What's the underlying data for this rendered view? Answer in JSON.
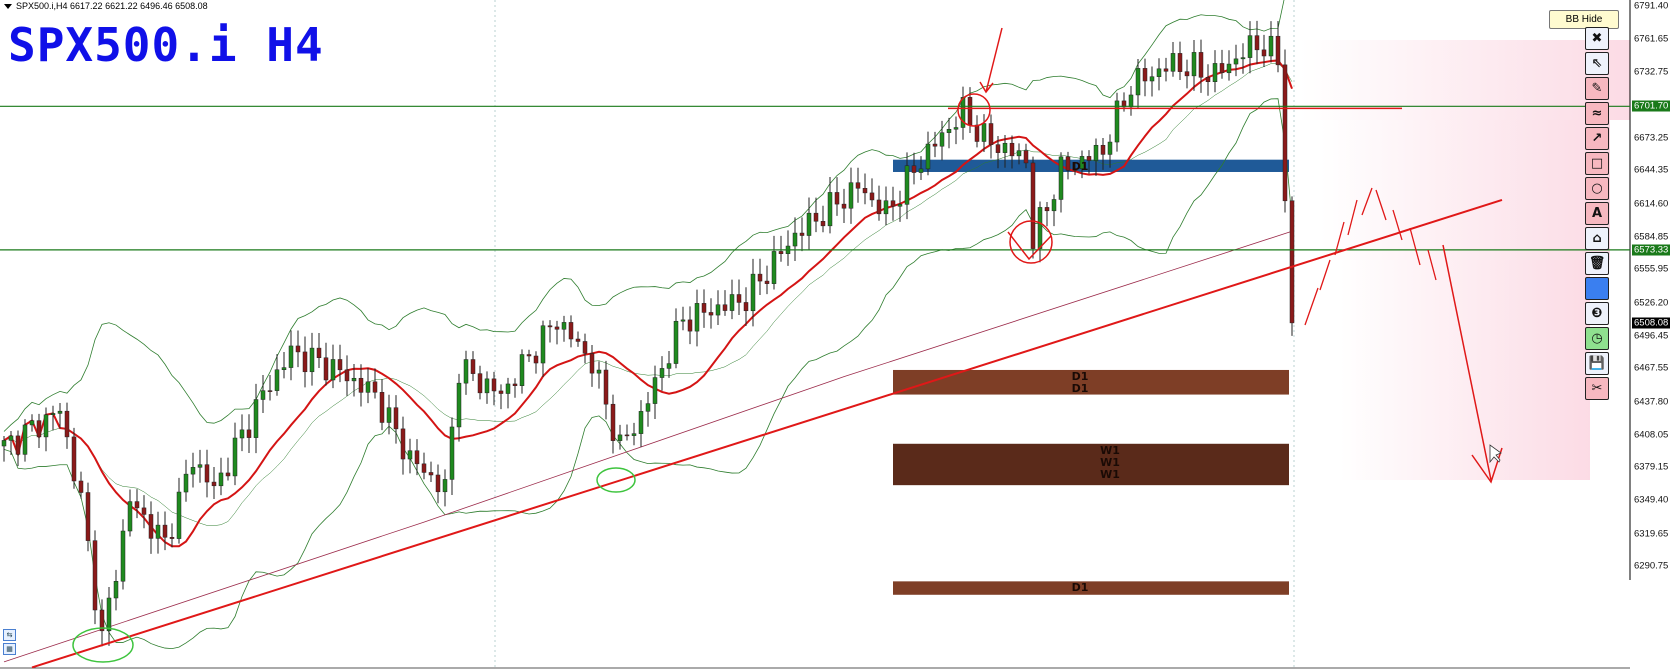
{
  "header": {
    "symbol_line": "SPX500.i,H4  6617.22 6621.22 6496.46 6508.08",
    "big_title": "SPX500.i H4"
  },
  "controls": {
    "bb_hide_label": "BB Hide"
  },
  "toolbar": {
    "items": [
      {
        "icon": "close-icon",
        "glyph": "✖",
        "style": "plain"
      },
      {
        "icon": "cursor-icon",
        "glyph": "⇖",
        "style": "plain"
      },
      {
        "icon": "pencil-icon",
        "glyph": "✎",
        "style": "pink"
      },
      {
        "icon": "wave-icon",
        "glyph": "≈",
        "style": "pink"
      },
      {
        "icon": "arrow-icon",
        "glyph": "↗",
        "style": "pink"
      },
      {
        "icon": "rectangle-icon",
        "glyph": "□",
        "style": "pink"
      },
      {
        "icon": "circle-icon",
        "glyph": "○",
        "style": "pink"
      },
      {
        "icon": "text-icon",
        "glyph": "A",
        "style": "pink"
      },
      {
        "icon": "label-icon",
        "glyph": "⌂",
        "style": "plain"
      },
      {
        "icon": "trash-icon",
        "glyph": "🗑",
        "style": "plain"
      },
      {
        "icon": "color-swatch-icon",
        "glyph": "",
        "style": "blue"
      },
      {
        "icon": "number-three-icon",
        "glyph": "❸",
        "style": "plain"
      },
      {
        "icon": "clock-icon",
        "glyph": "◷",
        "style": "green"
      },
      {
        "icon": "save-icon",
        "glyph": "💾",
        "style": "plain"
      },
      {
        "icon": "scissors-icon",
        "glyph": "✂",
        "style": "pink"
      }
    ]
  },
  "colors": {
    "bull": "#1f8a1f",
    "bear": "#8b1a1a",
    "ma_fast": "#d41414",
    "ma_slow": "#9b2a4a",
    "bands": "#2e7d2e",
    "trendline": "#e01818",
    "level_line": "#1a7a1a",
    "zone_blue": "#1f5a98",
    "zone_d1": "#7e3e26",
    "zone_w1": "#5a2a1a",
    "last_price_tag": "#000000",
    "level_tag": "#1a7a1a"
  },
  "chart_data": {
    "type": "candlestick",
    "symbol": "SPX500.i",
    "timeframe": "H4",
    "last_bar": {
      "open": 6617.22,
      "high": 6621.22,
      "low": 6496.46,
      "close": 6508.08
    },
    "ylim": [
      6275,
      6800
    ],
    "y_ticks": [
      "6791.40",
      "6761.65",
      "6732.75",
      "6701.70",
      "6673.25",
      "6644.35",
      "6614.60",
      "6584.85",
      "6573.33",
      "6555.95",
      "6526.20",
      "6508.08",
      "6496.45",
      "6467.55",
      "6437.80",
      "6408.05",
      "6379.15",
      "6349.40",
      "6319.65",
      "6290.75"
    ],
    "close_path": [
      [
        0,
        6397
      ],
      [
        8,
        6430
      ],
      [
        11,
        6349
      ],
      [
        14,
        6225
      ],
      [
        18,
        6349
      ],
      [
        23,
        6311
      ],
      [
        27,
        6387
      ],
      [
        30,
        6359
      ],
      [
        37,
        6444
      ],
      [
        41,
        6482
      ],
      [
        47,
        6468
      ],
      [
        53,
        6444
      ],
      [
        58,
        6387
      ],
      [
        63,
        6359
      ],
      [
        65,
        6468
      ],
      [
        71,
        6444
      ],
      [
        79,
        6511
      ],
      [
        84,
        6473
      ],
      [
        88,
        6397
      ],
      [
        91,
        6425
      ],
      [
        97,
        6511
      ],
      [
        106,
        6530
      ],
      [
        113,
        6587
      ],
      [
        122,
        6630
      ],
      [
        126,
        6606
      ],
      [
        131,
        6654
      ],
      [
        137,
        6697
      ],
      [
        140,
        6673
      ],
      [
        146,
        6654
      ],
      [
        147,
        6582
      ],
      [
        151,
        6644
      ],
      [
        157,
        6663
      ],
      [
        161,
        6721
      ],
      [
        167,
        6740
      ],
      [
        173,
        6730
      ],
      [
        179,
        6759
      ],
      [
        183,
        6740
      ],
      [
        184,
        6508
      ]
    ],
    "slow_ma_path": [
      [
        0,
        6205
      ],
      [
        60,
        6330
      ],
      [
        120,
        6460
      ],
      [
        184,
        6590
      ]
    ],
    "horizontal_levels": [
      {
        "price": 6701.7,
        "label": "6701.70"
      },
      {
        "price": 6573.33,
        "label": "6573.33"
      }
    ],
    "last_price_label": "6508.08",
    "zones": [
      {
        "top": 6654,
        "bottom": 6643,
        "labels": [
          "D1"
        ],
        "kind": "blue"
      },
      {
        "top": 6466,
        "bottom": 6444,
        "labels": [
          "D1",
          "D1"
        ],
        "kind": "d1"
      },
      {
        "top": 6400,
        "bottom": 6363,
        "labels": [
          "W1",
          "W1",
          "W1"
        ],
        "kind": "w1"
      },
      {
        "top": 6277,
        "bottom": 6265,
        "labels": [
          "D1"
        ],
        "kind": "d1"
      }
    ],
    "trendline": {
      "from": [
        4,
        6200
      ],
      "to": [
        214,
        6618
      ]
    }
  }
}
